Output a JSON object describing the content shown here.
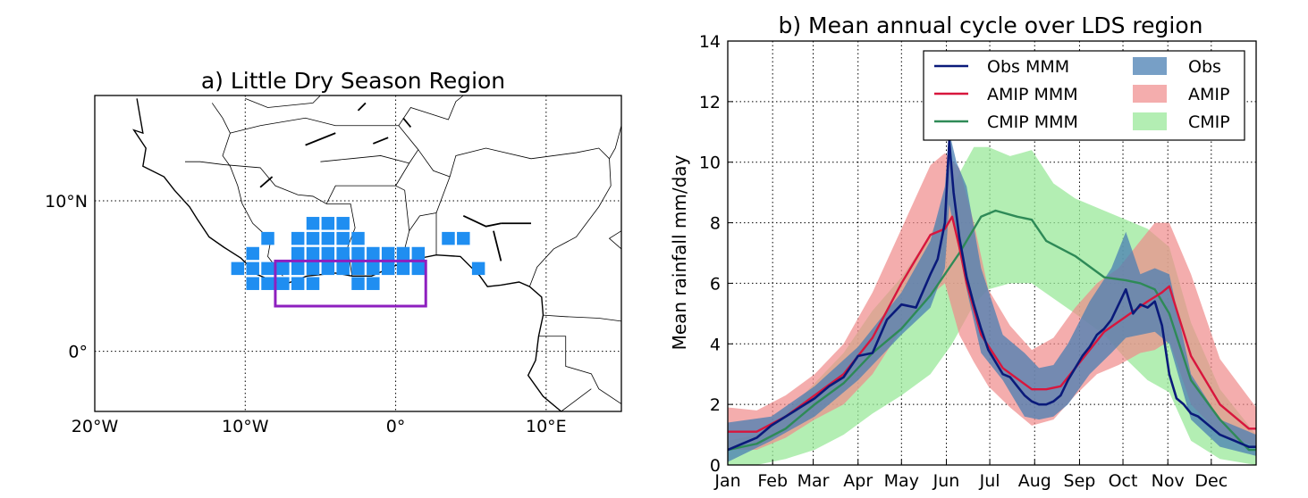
{
  "chart_data": [
    {
      "type": "map",
      "title": "a) Little Dry Season Region",
      "x_ticks": [
        "20°W",
        "10°W",
        "0°",
        "10°E"
      ],
      "y_ticks": [
        "10°N",
        "0°"
      ],
      "xlim": [
        -20,
        15
      ],
      "ylim": [
        -4,
        17
      ],
      "lds_grid_cells": [
        [
          -5.5,
          8.5
        ],
        [
          -4.5,
          8.5
        ],
        [
          -3.5,
          8.5
        ],
        [
          -8.5,
          7.5
        ],
        [
          -6.5,
          7.5
        ],
        [
          -5.5,
          7.5
        ],
        [
          -4.5,
          7.5
        ],
        [
          -3.5,
          7.5
        ],
        [
          -2.5,
          7.5
        ],
        [
          3.5,
          7.5
        ],
        [
          4.5,
          7.5
        ],
        [
          -9.5,
          6.5
        ],
        [
          -6.5,
          6.5
        ],
        [
          -5.5,
          6.5
        ],
        [
          -4.5,
          6.5
        ],
        [
          -3.5,
          6.5
        ],
        [
          -2.5,
          6.5
        ],
        [
          -1.5,
          6.5
        ],
        [
          -0.5,
          6.5
        ],
        [
          0.5,
          6.5
        ],
        [
          1.5,
          6.5
        ],
        [
          -10.5,
          5.5
        ],
        [
          -9.5,
          5.5
        ],
        [
          -8.5,
          5.5
        ],
        [
          -7.5,
          5.5
        ],
        [
          -6.5,
          5.5
        ],
        [
          -5.5,
          5.5
        ],
        [
          -4.5,
          5.5
        ],
        [
          -3.5,
          5.5
        ],
        [
          -2.5,
          5.5
        ],
        [
          -1.5,
          5.5
        ],
        [
          -0.5,
          5.5
        ],
        [
          0.5,
          5.5
        ],
        [
          1.5,
          5.5
        ],
        [
          5.5,
          5.5
        ],
        [
          -9.5,
          4.5
        ],
        [
          -8.5,
          4.5
        ],
        [
          -7.5,
          4.5
        ],
        [
          -6.5,
          4.5
        ],
        [
          -5.5,
          4.5
        ],
        [
          -2.5,
          4.5
        ],
        [
          -1.5,
          4.5
        ]
      ],
      "box": {
        "lon": [
          -8,
          2
        ],
        "lat": [
          3,
          6
        ]
      },
      "colors": {
        "cells": "#1f8ef1",
        "box": "#8e1fbf",
        "coast": "#000000"
      }
    },
    {
      "type": "line",
      "title": "b) Mean annual cycle over LDS region",
      "ylabel": "Mean rainfall mm/day",
      "xlim": [
        0,
        365
      ],
      "ylim": [
        0,
        14
      ],
      "y_ticks": [
        0,
        2,
        4,
        6,
        8,
        10,
        12,
        14
      ],
      "x_ticks": [
        {
          "day": 0,
          "label": "Jan"
        },
        {
          "day": 31,
          "label": "Feb"
        },
        {
          "day": 59,
          "label": "Mar"
        },
        {
          "day": 90,
          "label": "Apr"
        },
        {
          "day": 120,
          "label": "May"
        },
        {
          "day": 151,
          "label": "Jun"
        },
        {
          "day": 181,
          "label": "Jul"
        },
        {
          "day": 212,
          "label": "Aug"
        },
        {
          "day": 243,
          "label": "Sep"
        },
        {
          "day": 273,
          "label": "Oct"
        },
        {
          "day": 304,
          "label": "Nov"
        },
        {
          "day": 334,
          "label": "Dec"
        }
      ],
      "grid": true,
      "legend_position": "top-right",
      "series": [
        {
          "name": "Obs MMM",
          "kind": "line",
          "color": "#0a1a7a",
          "x": [
            0,
            10,
            20,
            30,
            40,
            50,
            60,
            70,
            80,
            90,
            100,
            110,
            120,
            130,
            140,
            145,
            150,
            153,
            156,
            160,
            165,
            170,
            175,
            180,
            185,
            190,
            195,
            200,
            205,
            210,
            215,
            220,
            225,
            230,
            235,
            240,
            245,
            250,
            255,
            260,
            265,
            270,
            275,
            280,
            285,
            290,
            295,
            300,
            305,
            310,
            315,
            320,
            325,
            330,
            340,
            350,
            360,
            365
          ],
          "y": [
            0.5,
            0.7,
            0.9,
            1.3,
            1.6,
            1.9,
            2.2,
            2.6,
            2.9,
            3.6,
            3.7,
            4.8,
            5.3,
            5.2,
            6.3,
            6.8,
            8.0,
            10.7,
            9.0,
            7.5,
            6.2,
            5.3,
            4.5,
            3.8,
            3.4,
            3.0,
            2.9,
            2.6,
            2.3,
            2.1,
            2.0,
            2.0,
            2.1,
            2.3,
            2.8,
            3.2,
            3.6,
            3.9,
            4.3,
            4.5,
            4.8,
            5.3,
            5.8,
            5.0,
            5.3,
            5.2,
            5.4,
            4.6,
            3.0,
            2.2,
            2.0,
            1.7,
            1.6,
            1.4,
            1.0,
            0.8,
            0.6,
            0.6
          ]
        },
        {
          "name": "AMIP MMM",
          "kind": "line",
          "color": "#d8163d",
          "x": [
            0,
            20,
            40,
            60,
            80,
            100,
            120,
            140,
            150,
            155,
            160,
            165,
            175,
            190,
            210,
            220,
            230,
            245,
            260,
            275,
            290,
            300,
            305,
            320,
            340,
            360,
            365
          ],
          "y": [
            1.1,
            1.1,
            1.6,
            2.3,
            3.0,
            4.2,
            6.0,
            7.6,
            7.8,
            8.2,
            7.2,
            6.0,
            4.3,
            3.2,
            2.5,
            2.5,
            2.6,
            3.5,
            4.4,
            4.9,
            5.4,
            5.7,
            5.9,
            3.6,
            2.0,
            1.2,
            1.2
          ]
        },
        {
          "name": "CMIP MMM",
          "kind": "line",
          "color": "#2e8a57",
          "x": [
            0,
            20,
            40,
            60,
            80,
            100,
            120,
            140,
            160,
            175,
            185,
            200,
            210,
            220,
            240,
            260,
            275,
            285,
            295,
            305,
            320,
            340,
            360,
            365
          ],
          "y": [
            0.5,
            0.7,
            1.2,
            2.0,
            2.7,
            3.7,
            4.5,
            5.6,
            7.0,
            8.2,
            8.4,
            8.2,
            8.1,
            7.4,
            6.9,
            6.2,
            6.1,
            6.0,
            5.8,
            5.0,
            2.8,
            1.5,
            0.5,
            0.5
          ]
        },
        {
          "name": "Obs",
          "kind": "band",
          "color": "#4a7fb3",
          "opacity": 0.75,
          "x": [
            0,
            30,
            60,
            90,
            120,
            140,
            150,
            153,
            158,
            165,
            175,
            190,
            205,
            215,
            225,
            235,
            250,
            265,
            275,
            285,
            295,
            305,
            320,
            340,
            365
          ],
          "lower": [
            0.1,
            0.8,
            1.6,
            2.8,
            4.3,
            5.2,
            6.5,
            8.6,
            7.5,
            5.8,
            3.7,
            2.8,
            1.6,
            1.5,
            1.6,
            2.0,
            3.0,
            3.7,
            4.2,
            4.3,
            4.4,
            4.0,
            1.5,
            0.6,
            0.3
          ],
          "upper": [
            1.4,
            1.6,
            2.6,
            3.9,
            5.7,
            7.4,
            9.2,
            11.0,
            10.0,
            9.2,
            6.5,
            4.3,
            3.7,
            3.2,
            3.3,
            4.0,
            5.4,
            6.5,
            7.7,
            6.3,
            6.5,
            6.3,
            3.0,
            1.5,
            1.0
          ]
        },
        {
          "name": "AMIP",
          "kind": "band",
          "color": "#f08a8a",
          "opacity": 0.7,
          "x": [
            0,
            20,
            40,
            60,
            80,
            100,
            120,
            140,
            150,
            160,
            170,
            180,
            195,
            210,
            225,
            240,
            255,
            270,
            285,
            295,
            305,
            320,
            340,
            365
          ],
          "lower": [
            0.5,
            0.5,
            0.9,
            1.5,
            2.0,
            3.0,
            4.5,
            5.6,
            6.0,
            4.3,
            3.4,
            2.6,
            1.9,
            1.3,
            1.5,
            2.3,
            3.0,
            3.3,
            3.7,
            3.8,
            4.1,
            2.0,
            1.0,
            0.6
          ],
          "upper": [
            1.9,
            1.8,
            2.3,
            3.0,
            4.0,
            5.7,
            7.8,
            9.9,
            10.3,
            9.8,
            8.0,
            5.8,
            4.6,
            3.8,
            4.2,
            5.2,
            6.0,
            6.5,
            7.4,
            8.0,
            8.0,
            6.3,
            3.5,
            1.9
          ]
        },
        {
          "name": "CMIP",
          "kind": "band",
          "color": "#99e899",
          "opacity": 0.75,
          "x": [
            0,
            20,
            40,
            60,
            80,
            100,
            120,
            140,
            155,
            170,
            180,
            195,
            210,
            225,
            240,
            260,
            275,
            290,
            305,
            320,
            340,
            365
          ],
          "lower": [
            0.0,
            0.0,
            0.2,
            0.5,
            1.0,
            1.7,
            2.3,
            3.0,
            4.0,
            5.3,
            5.8,
            6.0,
            6.0,
            5.5,
            5.0,
            4.3,
            3.5,
            2.8,
            2.4,
            0.8,
            0.2,
            0.0
          ],
          "upper": [
            0.8,
            1.0,
            1.7,
            2.7,
            3.7,
            5.1,
            6.2,
            7.6,
            9.2,
            10.5,
            10.5,
            10.2,
            10.4,
            9.3,
            8.8,
            8.4,
            8.1,
            7.8,
            7.2,
            4.7,
            2.5,
            1.0
          ]
        }
      ],
      "legend_rows": [
        [
          "Obs MMM",
          "Obs"
        ],
        [
          "AMIP MMM",
          "AMIP"
        ],
        [
          "CMIP MMM",
          "CMIP"
        ]
      ]
    }
  ]
}
